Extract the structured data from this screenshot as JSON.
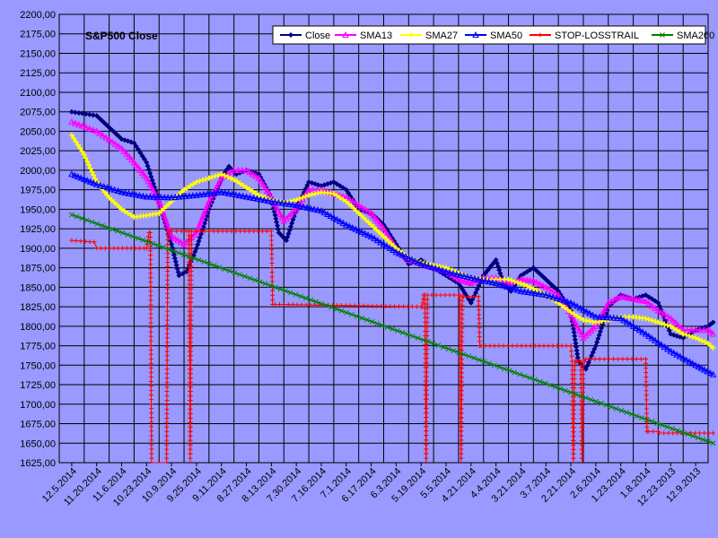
{
  "chart_data": {
    "type": "line",
    "title": "S&P500 Close",
    "ylim": [
      1625,
      2200
    ],
    "y_ticks": [
      "2200,00",
      "2175,00",
      "2150,00",
      "2125,00",
      "2100,00",
      "2075,00",
      "2050,00",
      "2025,00",
      "2000,00",
      "1975,00",
      "1950,00",
      "1925,00",
      "1900,00",
      "1875,00",
      "1850,00",
      "1825,00",
      "1800,00",
      "1775,00",
      "1750,00",
      "1725,00",
      "1700,00",
      "1675,00",
      "1650,00",
      "1625,00"
    ],
    "x_ticks": [
      "12.5.2014",
      "11.20.2014",
      "11.6.2014",
      "10.23.2014",
      "10.9.2014",
      "9.25.2014",
      "9.11.2014",
      "8.27.2014",
      "8.13.2014",
      "7.30.2014",
      "7.16.2014",
      "7.1.2014",
      "6.17.2014",
      "6.3.2014",
      "5.19.2014",
      "5.5.2014",
      "4.21.2014",
      "4.4.2014",
      "3.21.2014",
      "3.7.2014",
      "2.21.2014",
      "2.6.2014",
      "1.23.2014",
      "1.8.2014",
      "12.23.2013",
      "12.9.2013"
    ],
    "grid": true,
    "legend_position": "top-right",
    "series": [
      {
        "name": "Close",
        "color": "#000080",
        "marker": "diamond",
        "x": [
          0,
          1,
          1.5,
          2,
          2.5,
          3,
          3.5,
          4,
          4.3,
          4.6,
          5,
          5.5,
          6,
          6.3,
          6.6,
          7,
          7.5,
          8,
          8.3,
          8.6,
          9,
          9.5,
          10,
          10.5,
          11,
          11.5,
          12,
          12.5,
          13,
          13.5,
          14,
          14.5,
          15,
          15.5,
          16,
          16.5,
          17,
          17.3,
          17.6,
          18,
          18.5,
          19,
          19.5,
          20,
          20.3,
          20.6,
          21,
          21.5,
          22,
          22.5,
          23,
          23.5,
          24,
          24.5,
          25,
          25.5,
          25.7
        ],
        "y": [
          2075,
          2070,
          2055,
          2040,
          2035,
          2010,
          1960,
          1905,
          1865,
          1870,
          1900,
          1950,
          1990,
          2005,
          1995,
          2000,
          1995,
          1965,
          1920,
          1910,
          1950,
          1985,
          1980,
          1985,
          1975,
          1950,
          1945,
          1930,
          1905,
          1880,
          1885,
          1875,
          1865,
          1855,
          1830,
          1865,
          1885,
          1855,
          1845,
          1865,
          1875,
          1860,
          1845,
          1820,
          1755,
          1745,
          1775,
          1825,
          1840,
          1835,
          1840,
          1830,
          1790,
          1785,
          1795,
          1800,
          1805
        ]
      },
      {
        "name": "SMA13",
        "color": "#FF00FF",
        "marker": "triangle",
        "x": [
          0,
          1,
          2,
          2.5,
          3,
          3.5,
          4,
          4.5,
          5,
          5.5,
          6,
          6.5,
          7,
          7.5,
          8,
          8.5,
          9,
          9.5,
          10,
          10.5,
          11,
          11.5,
          12,
          12.5,
          13,
          13.5,
          14,
          14.5,
          15,
          15.5,
          16,
          16.5,
          17,
          17.5,
          18,
          18.5,
          19,
          19.5,
          20,
          20.5,
          21,
          21.5,
          22,
          22.5,
          23,
          23.5,
          24,
          24.5,
          25,
          25.5,
          25.7
        ],
        "y": [
          2062,
          2050,
          2028,
          2010,
          1990,
          1960,
          1915,
          1905,
          1920,
          1960,
          1990,
          2000,
          2000,
          1990,
          1965,
          1935,
          1950,
          1975,
          1975,
          1970,
          1965,
          1955,
          1945,
          1925,
          1900,
          1885,
          1880,
          1875,
          1870,
          1860,
          1855,
          1862,
          1862,
          1855,
          1860,
          1858,
          1850,
          1840,
          1815,
          1785,
          1800,
          1830,
          1838,
          1835,
          1832,
          1820,
          1810,
          1795,
          1795,
          1795,
          1790
        ]
      },
      {
        "name": "SMA27",
        "color": "#FFFF00",
        "marker": "cross",
        "x": [
          0,
          0.5,
          1,
          1.5,
          2,
          2.5,
          3,
          3.5,
          4,
          4.5,
          5,
          5.5,
          6,
          6.5,
          7,
          7.5,
          8,
          8.5,
          9,
          9.5,
          10,
          10.5,
          11,
          11.5,
          12,
          12.5,
          13,
          13.5,
          14,
          14.5,
          15,
          15.5,
          16,
          16.5,
          17,
          17.5,
          18,
          18.5,
          19,
          19.5,
          20,
          20.5,
          21,
          21.5,
          22,
          22.5,
          23,
          23.5,
          24,
          24.5,
          25,
          25.5,
          25.7
        ],
        "y": [
          2045,
          2020,
          1985,
          1965,
          1950,
          1940,
          1942,
          1945,
          1960,
          1975,
          1985,
          1990,
          1995,
          1988,
          1978,
          1968,
          1962,
          1958,
          1962,
          1968,
          1972,
          1970,
          1960,
          1945,
          1930,
          1915,
          1900,
          1888,
          1882,
          1878,
          1875,
          1868,
          1862,
          1860,
          1860,
          1860,
          1855,
          1848,
          1840,
          1830,
          1818,
          1808,
          1805,
          1808,
          1812,
          1812,
          1810,
          1805,
          1800,
          1790,
          1785,
          1778,
          1772
        ]
      },
      {
        "name": "SMA50",
        "color": "#0000FF",
        "marker": "triangle",
        "x": [
          0,
          1,
          2,
          3,
          4,
          5,
          6,
          7,
          8,
          9,
          10,
          11,
          12,
          13,
          14,
          15,
          16,
          17,
          18,
          19,
          20,
          21,
          22,
          23,
          24,
          25,
          25.7
        ],
        "y": [
          1995,
          1982,
          1972,
          1966,
          1965,
          1968,
          1972,
          1966,
          1960,
          1955,
          1948,
          1930,
          1915,
          1895,
          1880,
          1870,
          1862,
          1855,
          1845,
          1840,
          1830,
          1812,
          1810,
          1790,
          1768,
          1750,
          1738
        ]
      },
      {
        "name": "STOP-LOSSTRAIL",
        "color": "#FF0000",
        "marker": "plus",
        "x": [
          0,
          0.9,
          1,
          2.9,
          3,
          3.1,
          3.15,
          3.2,
          3.3,
          3.8,
          3.85,
          3.9,
          4,
          4.6,
          4.7,
          4.75,
          4.8,
          8,
          8.05,
          8.15,
          14,
          14.05,
          14.1,
          14.15,
          14.2,
          14.25,
          15.5,
          15.55,
          15.6,
          15.65,
          15.7,
          16.3,
          16.35,
          16.4,
          20,
          20.05,
          20.1,
          20.15,
          20.2,
          20.25,
          20.3,
          20.4,
          20.45,
          20.5,
          20.55,
          20.6,
          23,
          23.05,
          23.1,
          23.5,
          23.55,
          25.7
        ],
        "y": [
          1910,
          1908,
          1900,
          1900,
          1900,
          1920,
          1920,
          1625,
          1625,
          1625,
          1922,
          1922,
          1922,
          1922,
          1922,
          1625,
          1922,
          1922,
          1828,
          1828,
          1825,
          1825,
          1840,
          1840,
          1625,
          1840,
          1840,
          1840,
          1625,
          1838,
          1838,
          1838,
          1775,
          1775,
          1775,
          1755,
          1625,
          1755,
          1755,
          1755,
          1755,
          1755,
          1625,
          1755,
          1755,
          1758,
          1758,
          1665,
          1665,
          1665,
          1663,
          1663
        ]
      },
      {
        "name": "SMA200",
        "color": "#008000",
        "marker": "x",
        "x": [
          0,
          25.7
        ],
        "y": [
          1943,
          1650
        ]
      }
    ]
  }
}
